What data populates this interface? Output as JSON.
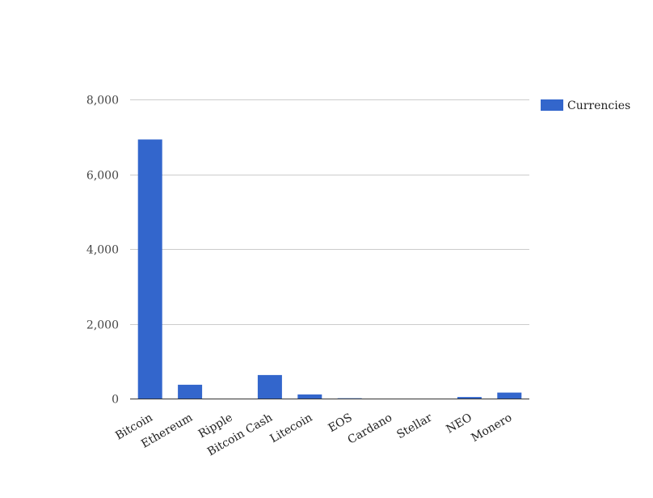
{
  "chart_data": {
    "type": "bar",
    "categories": [
      "Bitcoin",
      "Ethereum",
      "Ripple",
      "Bitcoin Cash",
      "Litecoin",
      "EOS",
      "Cardano",
      "Stellar",
      "NEO",
      "Monero"
    ],
    "series": [
      {
        "name": "Currencies",
        "color": "#3366cc",
        "values": [
          6930,
          370,
          0.9,
          630,
          110,
          9,
          0.35,
          0.35,
          40,
          160
        ]
      }
    ],
    "title": "",
    "xlabel": "",
    "ylabel": "",
    "ylim": [
      0,
      8000
    ],
    "yticks": [
      {
        "value": 0,
        "label": "0"
      },
      {
        "value": 2000,
        "label": "2,000"
      },
      {
        "value": 4000,
        "label": "4,000"
      },
      {
        "value": 6000,
        "label": "6,000"
      },
      {
        "value": 8000,
        "label": "8,000"
      }
    ],
    "grid": true,
    "legend_position": "right"
  }
}
